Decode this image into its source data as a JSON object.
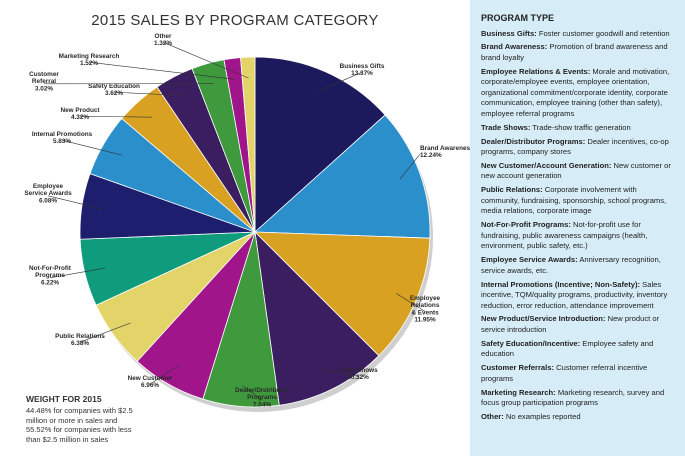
{
  "title": "2015 SALES BY PROGRAM CATEGORY",
  "chart_data": {
    "type": "pie",
    "title": "2015 SALES BY PROGRAM CATEGORY",
    "slices": [
      {
        "label": [
          "Business Gifts"
        ],
        "value": 13.37,
        "display": "13.37%",
        "color": "#1c1a5c"
      },
      {
        "label": [
          "Brand Awareness"
        ],
        "value": 12.24,
        "display": "12.24%",
        "color": "#2b8fcc"
      },
      {
        "label": [
          "Employee",
          "Relations",
          "& Events"
        ],
        "value": 11.95,
        "display": "11.95%",
        "color": "#d9a121"
      },
      {
        "label": [
          "Trade Shows"
        ],
        "value": 10.32,
        "display": "10.32%",
        "color": "#3b1e60"
      },
      {
        "label": [
          "Dealer/Distributor",
          "Programs"
        ],
        "value": 7.04,
        "display": "7.04%",
        "color": "#3e9a3c"
      },
      {
        "label": [
          "New Customer"
        ],
        "value": 6.96,
        "display": "6.96%",
        "color": "#a0158a"
      },
      {
        "label": [
          "Public Relations"
        ],
        "value": 6.38,
        "display": "6.38%",
        "color": "#e2d468"
      },
      {
        "label": [
          "Not-For-Profit",
          "Programs"
        ],
        "value": 6.22,
        "display": "6.22%",
        "color": "#0e9c7c"
      },
      {
        "label": [
          "Employee",
          "Service Awards"
        ],
        "value": 6.08,
        "display": "6.08%",
        "color": "#1e1e6e"
      },
      {
        "label": [
          "Internal Promotions"
        ],
        "value": 5.83,
        "display": "5.83%",
        "color": "#2b8fcc"
      },
      {
        "label": [
          "New Product"
        ],
        "value": 4.32,
        "display": "4.32%",
        "color": "#d9a121"
      },
      {
        "label": [
          "Safety Education"
        ],
        "value": 3.62,
        "display": "3.62%",
        "color": "#3b1e60"
      },
      {
        "label": [
          "Customer",
          "Referral"
        ],
        "value": 3.02,
        "display": "3.02%",
        "color": "#3e9a3c"
      },
      {
        "label": [
          "Marketing Research"
        ],
        "value": 1.52,
        "display": "1.52%",
        "color": "#a0158a"
      },
      {
        "label": [
          "Other"
        ],
        "value": 1.32,
        "display": "1.32%",
        "color": "#e2d468"
      }
    ]
  },
  "weight": {
    "title": "WEIGHT FOR 2015",
    "lines": [
      "44.48% for companies with $2.5",
      "million or more in sales and",
      "55.52% for companies with less",
      "than $2.5 million in sales"
    ]
  },
  "program_type": {
    "title": "PROGRAM TYPE",
    "entries": [
      {
        "term": "Business Gifts:",
        "desc": " Foster customer goodwill and retention"
      },
      {
        "term": "Brand Awareness:",
        "desc": " Promotion of brand awareness and brand loyalty"
      },
      {
        "term": "Employee Relations & Events:",
        "desc": " Morale and motivation, corporate/employee events, employee orientation, organizational commitment/corporate identity, corporate communication, employee training (other than safety), employee referral programs"
      },
      {
        "term": "Trade Shows:",
        "desc": " Trade-show traffic generation"
      },
      {
        "term": "Dealer/Distributor Programs:",
        "desc": " Dealer incentives, co-op programs, company stores"
      },
      {
        "term": "New Customer/Account Generation:",
        "desc": " New customer or new account generation"
      },
      {
        "term": "Public Relations:",
        "desc": " Corporate involvement with community, fundraising, sponsorship, school programs, media relations, corporate image"
      },
      {
        "term": "Not-For-Profit Programs:",
        "desc": " Not-for-profit use for fundraising, public awareness campaigns (health, environment, public safety, etc.)"
      },
      {
        "term": "Employee Service Awards:",
        "desc": " Anniversary recognition, service awards, etc."
      },
      {
        "term": "Internal Promotions (Incentive; Non-Safety):",
        "desc": " Sales incentive, TQM/quality programs, productivity, inventory reduction, error reduction, attendance improvement"
      },
      {
        "term": "New Product/Service Introduction:",
        "desc": " New product or service introduction"
      },
      {
        "term": "Safety Education/Incentive:",
        "desc": " Employee safety and education"
      },
      {
        "term": "Customer Referrals:",
        "desc": " Customer referral incentive programs"
      },
      {
        "term": "Marketing Research:",
        "desc": " Marketing research, survey and focus group participation programs"
      },
      {
        "term": "Other:",
        "desc": " No examples reported"
      }
    ]
  }
}
